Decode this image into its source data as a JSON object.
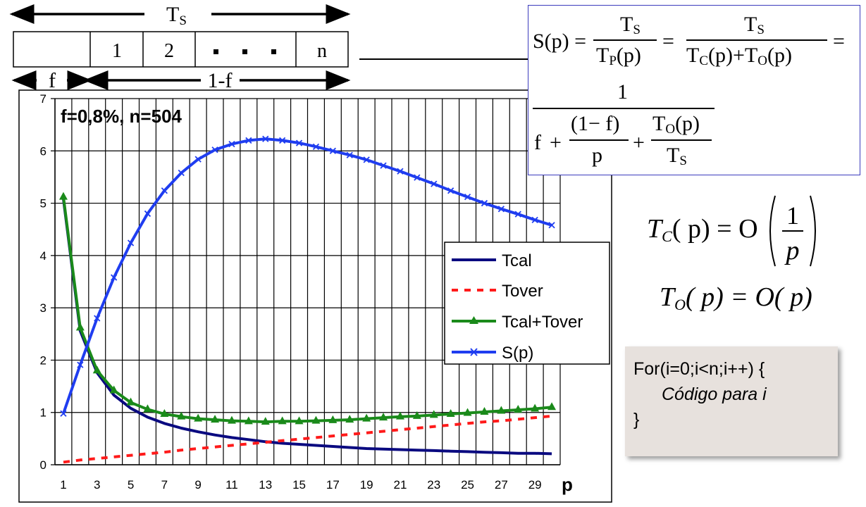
{
  "diagram": {
    "ts_label": "T",
    "ts_sub": "S",
    "cells": [
      "1",
      "2",
      "n"
    ],
    "f_label": "f",
    "one_minus_f_label": "1-f"
  },
  "formula": {
    "lhs": "S(p) =",
    "t_s": "T",
    "sub_s": "S",
    "t_p": "T",
    "sub_p": "P",
    "of_p": "(p)",
    "t_c": "T",
    "sub_c": "C",
    "t_o": "T",
    "sub_o": "O",
    "plus": "+",
    "eq": "=",
    "one": "1",
    "f": "f",
    "one_minus_f": "(1− f)",
    "p": "p"
  },
  "complexity": {
    "tc_T": "T",
    "tc_sub": "C",
    "tc_mid": "( p) = O",
    "tc_frac_num": "1",
    "tc_frac_den": "p",
    "to_T": "T",
    "to_sub": "O",
    "to_rest": "( p) = O( p)"
  },
  "code": {
    "line1": "For(i=0;i<n;i++) {",
    "line2": "Código para i",
    "line3": "}"
  },
  "chart_data": {
    "type": "line",
    "annotation": "f=0,8%, n=504",
    "xlabel": "p",
    "xlim": [
      0.5,
      30.5
    ],
    "ylim": [
      0,
      7
    ],
    "yticks": [
      0,
      1,
      2,
      3,
      4,
      5,
      6,
      7
    ],
    "xticks": [
      1,
      3,
      5,
      7,
      9,
      11,
      13,
      15,
      17,
      19,
      21,
      23,
      25,
      27,
      29
    ],
    "grid": "vertical-every-1-horizontal-every-1",
    "legend_position": "right",
    "x": [
      1,
      2,
      3,
      4,
      5,
      6,
      7,
      8,
      9,
      10,
      11,
      12,
      13,
      14,
      15,
      16,
      17,
      18,
      19,
      20,
      21,
      22,
      23,
      24,
      25,
      26,
      27,
      28,
      29,
      30
    ],
    "series": [
      {
        "name": "Tcal",
        "color": "#0a0a80",
        "style": "solid",
        "marker": "none",
        "values": [
          5.08,
          2.56,
          1.76,
          1.33,
          1.08,
          0.91,
          0.79,
          0.7,
          0.63,
          0.57,
          0.52,
          0.48,
          0.44,
          0.41,
          0.39,
          0.37,
          0.35,
          0.33,
          0.31,
          0.3,
          0.29,
          0.28,
          0.27,
          0.26,
          0.25,
          0.24,
          0.23,
          0.22,
          0.22,
          0.21
        ]
      },
      {
        "name": "Tover",
        "color": "#ff1a1a",
        "style": "dashed",
        "marker": "none",
        "values": [
          0.05,
          0.09,
          0.12,
          0.15,
          0.18,
          0.21,
          0.24,
          0.28,
          0.31,
          0.34,
          0.37,
          0.4,
          0.43,
          0.46,
          0.49,
          0.52,
          0.55,
          0.58,
          0.61,
          0.64,
          0.67,
          0.7,
          0.73,
          0.76,
          0.79,
          0.82,
          0.84,
          0.87,
          0.9,
          0.93
        ]
      },
      {
        "name": "Tcal+Tover",
        "color": "#1a8a1a",
        "style": "solid",
        "marker": "triangle",
        "values": [
          5.12,
          2.62,
          1.8,
          1.42,
          1.19,
          1.06,
          0.97,
          0.92,
          0.88,
          0.86,
          0.84,
          0.83,
          0.82,
          0.83,
          0.83,
          0.84,
          0.85,
          0.86,
          0.88,
          0.9,
          0.92,
          0.93,
          0.95,
          0.97,
          0.99,
          1.01,
          1.03,
          1.05,
          1.07,
          1.1
        ]
      },
      {
        "name": "S(p)",
        "color": "#1f3df0",
        "style": "solid",
        "marker": "x",
        "values": [
          0.98,
          1.91,
          2.8,
          3.58,
          4.24,
          4.8,
          5.24,
          5.58,
          5.84,
          6.02,
          6.13,
          6.2,
          6.23,
          6.2,
          6.15,
          6.08,
          6.0,
          5.92,
          5.83,
          5.72,
          5.61,
          5.49,
          5.37,
          5.24,
          5.12,
          5.0,
          4.89,
          4.79,
          4.68,
          4.58
        ]
      }
    ]
  }
}
